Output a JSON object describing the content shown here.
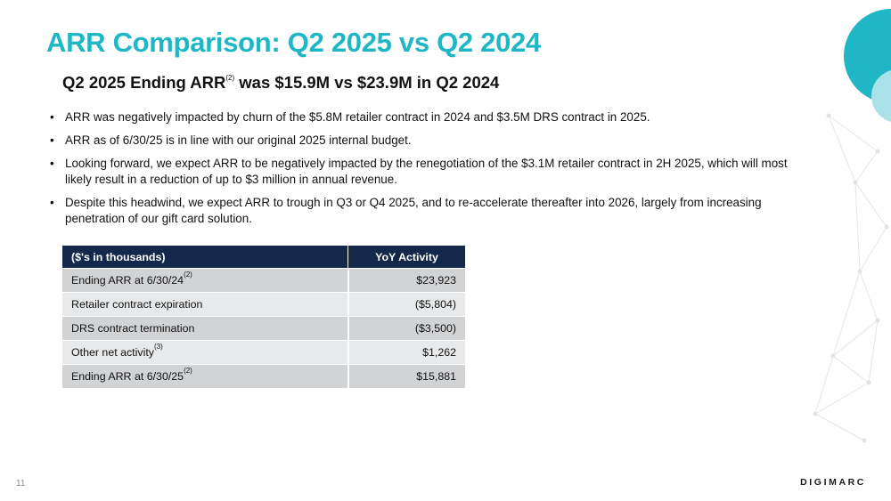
{
  "title": "ARR Comparison: Q2 2025 vs Q2 2024",
  "subtitle": {
    "prefix": "Q2 2025 Ending ARR",
    "footnote": "(2)",
    "suffix": " was $15.9M vs $23.9M in Q2 2024"
  },
  "bullet_symbol": "•",
  "bullets": [
    "ARR was negatively impacted by churn of the $5.8M retailer contract in 2024 and $3.5M DRS contract in 2025.",
    "ARR as of 6/30/25 is in line with our original 2025 internal budget.",
    "Looking forward, we expect ARR to be negatively impacted by the renegotiation of the $3.1M retailer contract in 2H 2025, which will most likely result in a reduction of up to $3 million in annual revenue.",
    "Despite this headwind, we expect ARR to trough in Q3 or Q4 2025, and to re-accelerate thereafter into 2026, largely from increasing penetration of our gift card solution."
  ],
  "table": {
    "headers": [
      "($'s in thousands)",
      "YoY Activity"
    ],
    "rows": [
      {
        "label": "Ending ARR at 6/30/24",
        "note": "(2)",
        "value": "$23,923"
      },
      {
        "label": "Retailer contract expiration",
        "note": "",
        "value": "($5,804)"
      },
      {
        "label": "DRS contract termination",
        "note": "",
        "value": "($3,500)"
      },
      {
        "label": "Other net activity",
        "note": "(3)",
        "value": "$1,262"
      },
      {
        "label": "Ending ARR at 6/30/25",
        "note": "(2)",
        "value": "$15,881"
      }
    ]
  },
  "page_number": "11",
  "logo_text": "DIGIMARC",
  "colors": {
    "accent_teal": "#1fb7c6",
    "circle_light": "#a9e2e8",
    "table_header": "#13284a",
    "row_dark": "#d2d3d5",
    "row_light": "#e8e9ea"
  }
}
